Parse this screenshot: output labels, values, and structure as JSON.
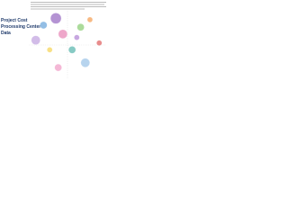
{
  "chart_data": {
    "type": "bubble",
    "title_lines": [
      "Project Cost",
      "Processing Center",
      "Data"
    ],
    "x": [
      35,
      44,
      19,
      67,
      79,
      27,
      56,
      9,
      91,
      73,
      38,
      62
    ],
    "y": [
      89,
      66,
      79,
      76,
      87,
      43,
      43,
      57,
      53,
      24,
      17,
      61
    ],
    "sizes": [
      36,
      25,
      16,
      16,
      9,
      9,
      16,
      25,
      9,
      25,
      16,
      9
    ],
    "colors": [
      "#9b6fc4",
      "#e88ab8",
      "#6fa8dc",
      "#8fcf7a",
      "#f4a259",
      "#f6d55c",
      "#5fb8b0",
      "#c3a6e0",
      "#e06666",
      "#9fc5e8",
      "#f0a0c8",
      "#b48ad6"
    ],
    "xlim": [
      0,
      100
    ],
    "ylim": [
      0,
      100
    ]
  }
}
